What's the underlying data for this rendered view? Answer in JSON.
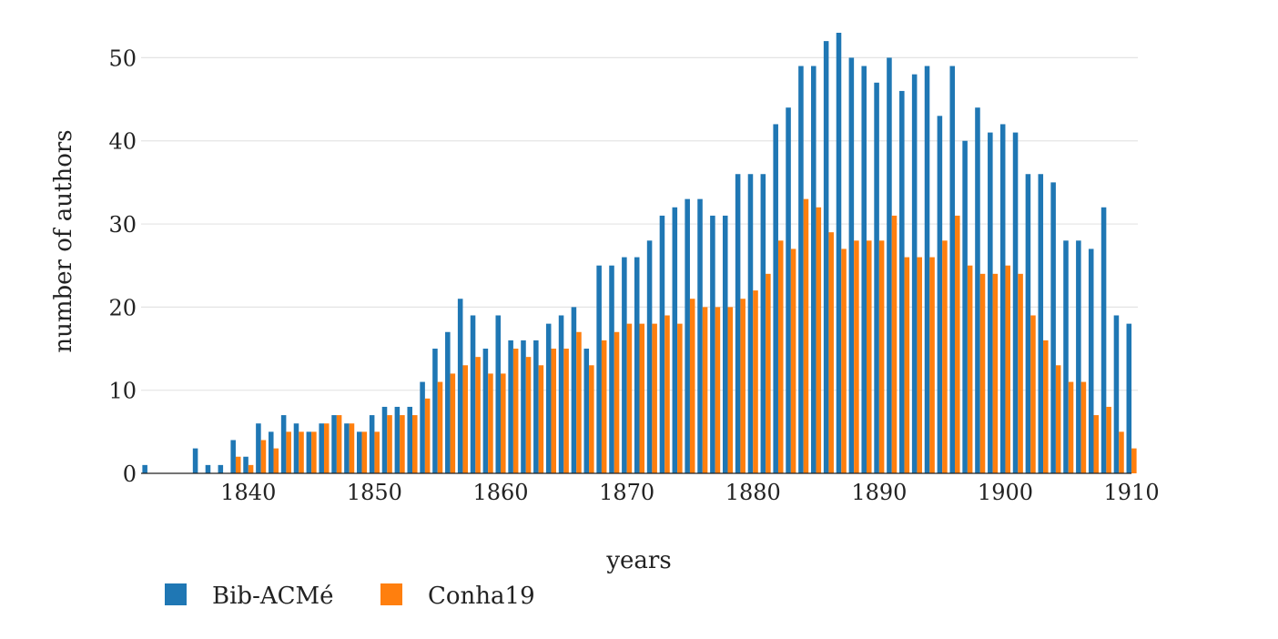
{
  "chart_data": {
    "type": "bar",
    "xlabel": "years",
    "ylabel": "number of authors",
    "xlim": [
      1831.5,
      1910.5
    ],
    "ylim": [
      0,
      53
    ],
    "x_ticks": [
      1840,
      1850,
      1860,
      1870,
      1880,
      1890,
      1900,
      1910
    ],
    "y_ticks": [
      0,
      10,
      20,
      30,
      40,
      50
    ],
    "grid": "horizontal",
    "legend_position": "bottom-left",
    "x": [
      1832,
      1833,
      1834,
      1835,
      1836,
      1837,
      1838,
      1839,
      1840,
      1841,
      1842,
      1843,
      1844,
      1845,
      1846,
      1847,
      1848,
      1849,
      1850,
      1851,
      1852,
      1853,
      1854,
      1855,
      1856,
      1857,
      1858,
      1859,
      1860,
      1861,
      1862,
      1863,
      1864,
      1865,
      1866,
      1867,
      1868,
      1869,
      1870,
      1871,
      1872,
      1873,
      1874,
      1875,
      1876,
      1877,
      1878,
      1879,
      1880,
      1881,
      1882,
      1883,
      1884,
      1885,
      1886,
      1887,
      1888,
      1889,
      1890,
      1891,
      1892,
      1893,
      1894,
      1895,
      1896,
      1897,
      1898,
      1899,
      1900,
      1901,
      1902,
      1903,
      1904,
      1905,
      1906,
      1907,
      1908,
      1909,
      1910
    ],
    "series": [
      {
        "name": "Bib-ACMé",
        "color": "#1f77b4",
        "values": [
          1,
          0,
          0,
          0,
          3,
          1,
          1,
          4,
          2,
          6,
          5,
          7,
          6,
          5,
          6,
          7,
          6,
          5,
          7,
          8,
          8,
          8,
          11,
          15,
          17,
          21,
          19,
          15,
          19,
          16,
          16,
          16,
          18,
          19,
          20,
          15,
          25,
          25,
          26,
          26,
          28,
          31,
          32,
          33,
          33,
          31,
          31,
          36,
          36,
          36,
          42,
          44,
          49,
          49,
          52,
          53,
          50,
          49,
          47,
          50,
          46,
          48,
          49,
          43,
          49,
          40,
          44,
          41,
          42,
          41,
          36,
          36,
          35,
          28,
          28,
          27,
          32,
          19,
          18
        ]
      },
      {
        "name": "Conha19",
        "color": "#ff7f0e",
        "values": [
          0,
          0,
          0,
          0,
          0,
          0,
          0,
          2,
          1,
          4,
          3,
          5,
          5,
          5,
          6,
          7,
          6,
          5,
          5,
          7,
          7,
          7,
          9,
          11,
          12,
          13,
          14,
          12,
          12,
          15,
          14,
          13,
          15,
          15,
          17,
          13,
          16,
          17,
          18,
          18,
          18,
          19,
          18,
          21,
          20,
          20,
          20,
          21,
          22,
          24,
          28,
          27,
          33,
          32,
          29,
          27,
          28,
          28,
          28,
          31,
          26,
          26,
          26,
          28,
          31,
          25,
          24,
          24,
          25,
          24,
          19,
          16,
          13,
          11,
          11,
          7,
          8,
          5,
          3
        ]
      }
    ]
  }
}
